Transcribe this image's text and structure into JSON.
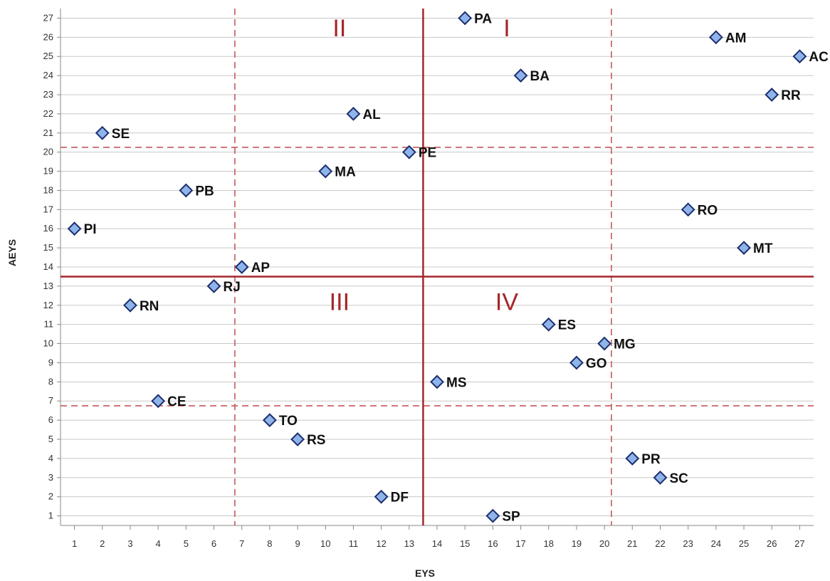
{
  "chart_data": {
    "type": "scatter",
    "title": "",
    "xlabel": "EYS",
    "ylabel": "AEYS",
    "xlim": [
      0.5,
      27.5
    ],
    "ylim": [
      0.5,
      27.5
    ],
    "x_ticks": [
      1,
      2,
      3,
      4,
      5,
      6,
      7,
      8,
      9,
      10,
      11,
      12,
      13,
      14,
      15,
      16,
      17,
      18,
      19,
      20,
      21,
      22,
      23,
      24,
      25,
      26,
      27
    ],
    "y_ticks": [
      1,
      2,
      3,
      4,
      5,
      6,
      7,
      8,
      9,
      10,
      11,
      12,
      13,
      14,
      15,
      16,
      17,
      18,
      19,
      20,
      21,
      22,
      23,
      24,
      25,
      26,
      27
    ],
    "grid": true,
    "legend": "none",
    "points": [
      {
        "label": "PA",
        "x": 15,
        "y": 27
      },
      {
        "label": "AM",
        "x": 24,
        "y": 26
      },
      {
        "label": "AC",
        "x": 27,
        "y": 25
      },
      {
        "label": "BA",
        "x": 17,
        "y": 24
      },
      {
        "label": "RR",
        "x": 26,
        "y": 23
      },
      {
        "label": "AL",
        "x": 11,
        "y": 22
      },
      {
        "label": "SE",
        "x": 2,
        "y": 21
      },
      {
        "label": "PE",
        "x": 13,
        "y": 20
      },
      {
        "label": "MA",
        "x": 10,
        "y": 19
      },
      {
        "label": "PB",
        "x": 5,
        "y": 18
      },
      {
        "label": "RO",
        "x": 23,
        "y": 17
      },
      {
        "label": "PI",
        "x": 1,
        "y": 16
      },
      {
        "label": "MT",
        "x": 25,
        "y": 15
      },
      {
        "label": "AP",
        "x": 7,
        "y": 14
      },
      {
        "label": "RJ",
        "x": 6,
        "y": 13
      },
      {
        "label": "RN",
        "x": 3,
        "y": 12
      },
      {
        "label": "ES",
        "x": 18,
        "y": 11
      },
      {
        "label": "MG",
        "x": 20,
        "y": 10
      },
      {
        "label": "GO",
        "x": 19,
        "y": 9
      },
      {
        "label": "MS",
        "x": 14,
        "y": 8
      },
      {
        "label": "CE",
        "x": 4,
        "y": 7
      },
      {
        "label": "TO",
        "x": 8,
        "y": 6
      },
      {
        "label": "RS",
        "x": 9,
        "y": 5
      },
      {
        "label": "PR",
        "x": 21,
        "y": 4
      },
      {
        "label": "SC",
        "x": 22,
        "y": 3
      },
      {
        "label": "DF",
        "x": 12,
        "y": 2
      },
      {
        "label": "SP",
        "x": 16,
        "y": 1
      }
    ],
    "reference_lines": {
      "solid_x": 13.5,
      "solid_y": 13.5,
      "dashed_x": [
        6.75,
        20.25
      ],
      "dashed_y": [
        6.75,
        20.25
      ]
    },
    "quadrant_labels": [
      {
        "text": "I",
        "x": 16.5,
        "y": 26.5
      },
      {
        "text": "II",
        "x": 10.5,
        "y": 26.5
      },
      {
        "text": "III",
        "x": 10.5,
        "y": 12.2
      },
      {
        "text": "IV",
        "x": 16.5,
        "y": 12.2
      }
    ],
    "colors": {
      "marker_fill": "#8fb4ea",
      "marker_stroke": "#1c2e6e",
      "reference_line": "#a3262a",
      "dashed_line": "#c25a5a",
      "grid": "#c8c8c8"
    }
  }
}
